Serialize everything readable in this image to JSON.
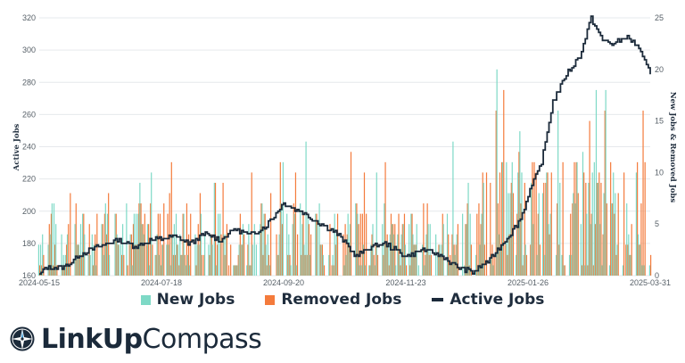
{
  "chart_data": {
    "type": "bar+line",
    "y_left_label": "Active Jobs",
    "y_right_label": "New Jobs & Removed Jobs",
    "y_left_ticks": [
      "160",
      "180",
      "200",
      "220",
      "240",
      "260",
      "280",
      "300",
      "320"
    ],
    "y_left_range": [
      160,
      320
    ],
    "y_right_ticks": [
      "0",
      "5",
      "10",
      "15",
      "20",
      "25"
    ],
    "y_right_range": [
      0,
      25
    ],
    "x_ticks": [
      "2024-05-15",
      "2024-07-18",
      "2024-09-20",
      "2024-11-23",
      "2025-01-26",
      "2025-03-31"
    ],
    "x_range": [
      "2024-05-15",
      "2025-03-31"
    ],
    "series": [
      {
        "name": "New Jobs",
        "color": "#7ed9c6",
        "type": "bar",
        "axis": "right"
      },
      {
        "name": "Removed Jobs",
        "color": "#f47b3c",
        "type": "bar",
        "axis": "right"
      },
      {
        "name": "Active Jobs",
        "color": "#1b2a3a",
        "type": "line",
        "axis": "left"
      }
    ],
    "active_jobs_keypoints": [
      [
        "2024-05-15",
        160
      ],
      [
        "2024-05-18",
        165
      ],
      [
        "2024-05-28",
        165
      ],
      [
        "2024-06-05",
        173
      ],
      [
        "2024-06-15",
        178
      ],
      [
        "2024-06-25",
        182
      ],
      [
        "2024-07-05",
        178
      ],
      [
        "2024-07-12",
        182
      ],
      [
        "2024-07-25",
        184
      ],
      [
        "2024-08-02",
        180
      ],
      [
        "2024-08-10",
        186
      ],
      [
        "2024-08-18",
        182
      ],
      [
        "2024-08-25",
        189
      ],
      [
        "2024-09-02",
        185
      ],
      [
        "2024-09-10",
        190
      ],
      [
        "2024-09-20",
        205
      ],
      [
        "2024-09-30",
        199
      ],
      [
        "2024-10-08",
        193
      ],
      [
        "2024-10-18",
        186
      ],
      [
        "2024-10-28",
        172
      ],
      [
        "2024-11-05",
        178
      ],
      [
        "2024-11-12",
        180
      ],
      [
        "2024-11-23",
        172
      ],
      [
        "2024-12-02",
        176
      ],
      [
        "2024-12-12",
        172
      ],
      [
        "2024-12-20",
        165
      ],
      [
        "2024-12-28",
        162
      ],
      [
        "2025-01-06",
        170
      ],
      [
        "2025-01-16",
        185
      ],
      [
        "2025-01-22",
        195
      ],
      [
        "2025-01-26",
        210
      ],
      [
        "2025-02-02",
        230
      ],
      [
        "2025-02-08",
        268
      ],
      [
        "2025-02-15",
        285
      ],
      [
        "2025-02-22",
        296
      ],
      [
        "2025-02-28",
        320
      ],
      [
        "2025-03-06",
        306
      ],
      [
        "2025-03-12",
        304
      ],
      [
        "2025-03-18",
        308
      ],
      [
        "2025-03-24",
        303
      ],
      [
        "2025-03-31",
        285
      ]
    ]
  },
  "legend": {
    "new_jobs": "New Jobs",
    "removed_jobs": "Removed Jobs",
    "active_jobs": "Active Jobs"
  },
  "logo": {
    "part1": "LinkUp",
    "part2": "Compass"
  }
}
